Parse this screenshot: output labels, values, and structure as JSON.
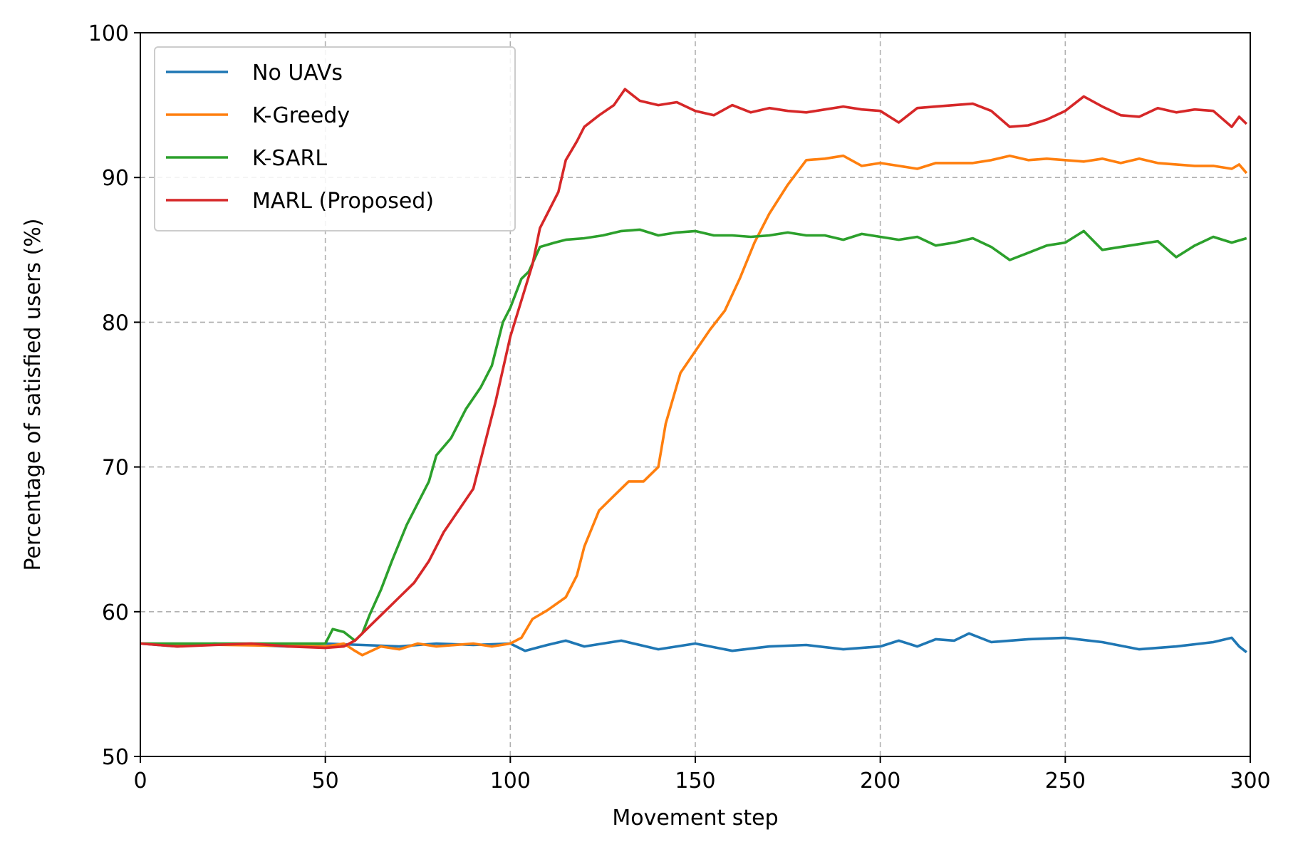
{
  "chart_data": {
    "type": "line",
    "title": "",
    "xlabel": "Movement step",
    "ylabel": "Percentage of satisfied users (%)",
    "xlim": [
      0,
      300
    ],
    "ylim": [
      50,
      100
    ],
    "xticks": [
      0,
      50,
      100,
      150,
      200,
      250,
      300
    ],
    "yticks": [
      50,
      60,
      70,
      80,
      90,
      100
    ],
    "grid": true,
    "legend_position": "top-left",
    "series": [
      {
        "name": "No UAVs",
        "color": "#1f77b4",
        "points": [
          [
            0,
            57.8
          ],
          [
            10,
            57.6
          ],
          [
            20,
            57.8
          ],
          [
            30,
            57.7
          ],
          [
            40,
            57.6
          ],
          [
            50,
            57.8
          ],
          [
            60,
            57.7
          ],
          [
            70,
            57.6
          ],
          [
            80,
            57.8
          ],
          [
            90,
            57.7
          ],
          [
            100,
            57.8
          ],
          [
            104,
            57.3
          ],
          [
            110,
            57.7
          ],
          [
            115,
            58.0
          ],
          [
            120,
            57.6
          ],
          [
            130,
            58.0
          ],
          [
            140,
            57.4
          ],
          [
            150,
            57.8
          ],
          [
            160,
            57.3
          ],
          [
            170,
            57.6
          ],
          [
            180,
            57.7
          ],
          [
            190,
            57.4
          ],
          [
            200,
            57.6
          ],
          [
            205,
            58.0
          ],
          [
            210,
            57.6
          ],
          [
            215,
            58.1
          ],
          [
            220,
            58.0
          ],
          [
            224,
            58.5
          ],
          [
            230,
            57.9
          ],
          [
            240,
            58.1
          ],
          [
            250,
            58.2
          ],
          [
            260,
            57.9
          ],
          [
            270,
            57.4
          ],
          [
            280,
            57.6
          ],
          [
            290,
            57.9
          ],
          [
            295,
            58.2
          ],
          [
            297,
            57.6
          ],
          [
            299,
            57.2
          ]
        ]
      },
      {
        "name": "K-Greedy",
        "color": "#ff7f0e",
        "points": [
          [
            0,
            57.8
          ],
          [
            50,
            57.6
          ],
          [
            55,
            57.8
          ],
          [
            58,
            57.3
          ],
          [
            60,
            57.0
          ],
          [
            65,
            57.6
          ],
          [
            70,
            57.4
          ],
          [
            75,
            57.8
          ],
          [
            80,
            57.6
          ],
          [
            90,
            57.8
          ],
          [
            95,
            57.6
          ],
          [
            100,
            57.8
          ],
          [
            103,
            58.2
          ],
          [
            106,
            59.5
          ],
          [
            110,
            60.1
          ],
          [
            115,
            61.0
          ],
          [
            118,
            62.5
          ],
          [
            120,
            64.5
          ],
          [
            124,
            67.0
          ],
          [
            128,
            68.0
          ],
          [
            132,
            69.0
          ],
          [
            136,
            69.0
          ],
          [
            140,
            70.0
          ],
          [
            142,
            73.0
          ],
          [
            146,
            76.5
          ],
          [
            150,
            78.0
          ],
          [
            154,
            79.5
          ],
          [
            158,
            80.8
          ],
          [
            162,
            83.0
          ],
          [
            166,
            85.5
          ],
          [
            170,
            87.5
          ],
          [
            175,
            89.5
          ],
          [
            180,
            91.2
          ],
          [
            185,
            91.3
          ],
          [
            190,
            91.5
          ],
          [
            195,
            90.8
          ],
          [
            200,
            91.0
          ],
          [
            205,
            90.8
          ],
          [
            210,
            90.6
          ],
          [
            215,
            91.0
          ],
          [
            220,
            91.0
          ],
          [
            225,
            91.0
          ],
          [
            230,
            91.2
          ],
          [
            235,
            91.5
          ],
          [
            240,
            91.2
          ],
          [
            245,
            91.3
          ],
          [
            250,
            91.2
          ],
          [
            255,
            91.1
          ],
          [
            260,
            91.3
          ],
          [
            265,
            91.0
          ],
          [
            270,
            91.3
          ],
          [
            275,
            91.0
          ],
          [
            280,
            90.9
          ],
          [
            285,
            90.8
          ],
          [
            290,
            90.8
          ],
          [
            295,
            90.6
          ],
          [
            297,
            90.9
          ],
          [
            299,
            90.3
          ]
        ]
      },
      {
        "name": "K-SARL",
        "color": "#2ca02c",
        "points": [
          [
            0,
            57.8
          ],
          [
            50,
            57.8
          ],
          [
            52,
            58.8
          ],
          [
            55,
            58.6
          ],
          [
            58,
            58.0
          ],
          [
            60,
            58.5
          ],
          [
            62,
            59.8
          ],
          [
            65,
            61.5
          ],
          [
            68,
            63.5
          ],
          [
            72,
            66.0
          ],
          [
            75,
            67.5
          ],
          [
            78,
            69.0
          ],
          [
            80,
            70.8
          ],
          [
            84,
            72.0
          ],
          [
            88,
            74.0
          ],
          [
            92,
            75.5
          ],
          [
            95,
            77.0
          ],
          [
            98,
            80.0
          ],
          [
            100,
            81.0
          ],
          [
            103,
            83.0
          ],
          [
            105,
            83.5
          ],
          [
            108,
            85.2
          ],
          [
            112,
            85.5
          ],
          [
            115,
            85.7
          ],
          [
            120,
            85.8
          ],
          [
            125,
            86.0
          ],
          [
            130,
            86.3
          ],
          [
            135,
            86.4
          ],
          [
            140,
            86.0
          ],
          [
            145,
            86.2
          ],
          [
            150,
            86.3
          ],
          [
            155,
            86.0
          ],
          [
            160,
            86.0
          ],
          [
            165,
            85.9
          ],
          [
            170,
            86.0
          ],
          [
            175,
            86.2
          ],
          [
            180,
            86.0
          ],
          [
            185,
            86.0
          ],
          [
            190,
            85.7
          ],
          [
            195,
            86.1
          ],
          [
            200,
            85.9
          ],
          [
            205,
            85.7
          ],
          [
            210,
            85.9
          ],
          [
            215,
            85.3
          ],
          [
            220,
            85.5
          ],
          [
            225,
            85.8
          ],
          [
            230,
            85.2
          ],
          [
            235,
            84.3
          ],
          [
            240,
            84.8
          ],
          [
            245,
            85.3
          ],
          [
            250,
            85.5
          ],
          [
            255,
            86.3
          ],
          [
            260,
            85.0
          ],
          [
            265,
            85.2
          ],
          [
            270,
            85.4
          ],
          [
            275,
            85.6
          ],
          [
            280,
            84.5
          ],
          [
            285,
            85.3
          ],
          [
            290,
            85.9
          ],
          [
            295,
            85.5
          ],
          [
            299,
            85.8
          ]
        ]
      },
      {
        "name": "MARL (Proposed)",
        "color": "#d62728",
        "points": [
          [
            0,
            57.8
          ],
          [
            10,
            57.6
          ],
          [
            20,
            57.7
          ],
          [
            30,
            57.8
          ],
          [
            40,
            57.6
          ],
          [
            50,
            57.5
          ],
          [
            55,
            57.6
          ],
          [
            58,
            58.0
          ],
          [
            62,
            59.0
          ],
          [
            66,
            60.0
          ],
          [
            70,
            61.0
          ],
          [
            74,
            62.0
          ],
          [
            78,
            63.5
          ],
          [
            82,
            65.5
          ],
          [
            86,
            67.0
          ],
          [
            90,
            68.5
          ],
          [
            93,
            71.5
          ],
          [
            96,
            74.5
          ],
          [
            100,
            79.0
          ],
          [
            103,
            81.5
          ],
          [
            106,
            84.0
          ],
          [
            108,
            86.5
          ],
          [
            110,
            87.5
          ],
          [
            113,
            89.0
          ],
          [
            115,
            91.2
          ],
          [
            118,
            92.5
          ],
          [
            120,
            93.5
          ],
          [
            124,
            94.3
          ],
          [
            128,
            95.0
          ],
          [
            131,
            96.1
          ],
          [
            135,
            95.3
          ],
          [
            140,
            95.0
          ],
          [
            145,
            95.2
          ],
          [
            150,
            94.6
          ],
          [
            155,
            94.3
          ],
          [
            160,
            95.0
          ],
          [
            165,
            94.5
          ],
          [
            170,
            94.8
          ],
          [
            175,
            94.6
          ],
          [
            180,
            94.5
          ],
          [
            185,
            94.7
          ],
          [
            190,
            94.9
          ],
          [
            195,
            94.7
          ],
          [
            200,
            94.6
          ],
          [
            205,
            93.8
          ],
          [
            210,
            94.8
          ],
          [
            215,
            94.9
          ],
          [
            220,
            95.0
          ],
          [
            225,
            95.1
          ],
          [
            230,
            94.6
          ],
          [
            235,
            93.5
          ],
          [
            240,
            93.6
          ],
          [
            245,
            94.0
          ],
          [
            250,
            94.6
          ],
          [
            255,
            95.6
          ],
          [
            260,
            94.9
          ],
          [
            265,
            94.3
          ],
          [
            270,
            94.2
          ],
          [
            275,
            94.8
          ],
          [
            280,
            94.5
          ],
          [
            285,
            94.7
          ],
          [
            290,
            94.6
          ],
          [
            295,
            93.5
          ],
          [
            297,
            94.2
          ],
          [
            299,
            93.7
          ]
        ]
      }
    ]
  }
}
